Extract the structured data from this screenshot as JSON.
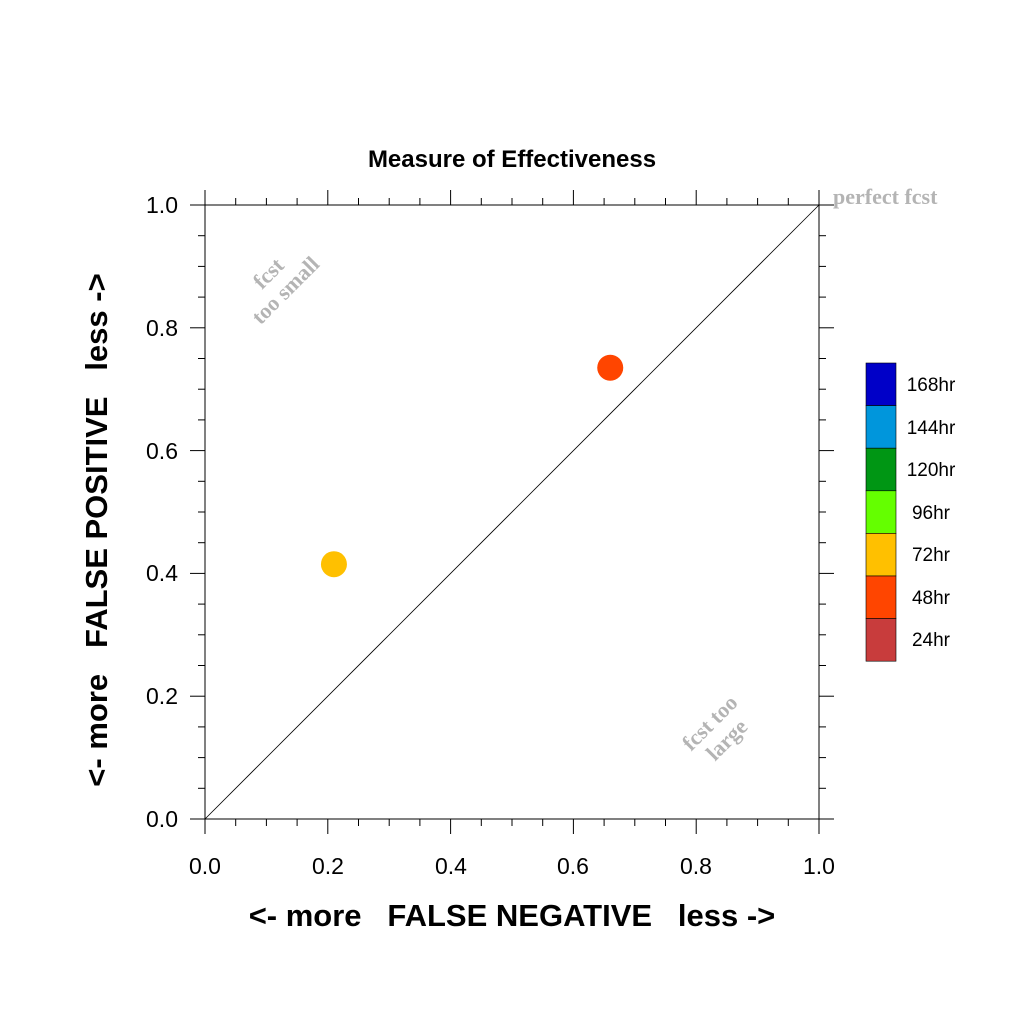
{
  "chart_data": {
    "type": "scatter",
    "title": "Measure of Effectiveness",
    "xlabel": "<- more   FALSE NEGATIVE   less ->",
    "ylabel": "<- more   FALSE POSITIVE   less ->",
    "xlim": [
      0.0,
      1.0
    ],
    "ylim": [
      0.0,
      1.0
    ],
    "x_ticks": [
      "0.0",
      "0.2",
      "0.4",
      "0.6",
      "0.8",
      "1.0"
    ],
    "y_ticks": [
      "0.0",
      "0.2",
      "0.4",
      "0.6",
      "0.8",
      "1.0"
    ],
    "grid": false,
    "diagonal_line": true,
    "annotations": {
      "top_right": "perfect fcst",
      "upper_left_1": "fcst",
      "upper_left_2": "too small",
      "lower_right_1": "fcst too",
      "lower_right_2": "large"
    },
    "points": [
      {
        "x": 0.21,
        "y": 0.415,
        "lead": "72hr",
        "color": "#ffc000"
      },
      {
        "x": 0.66,
        "y": 0.735,
        "lead": "48hr",
        "color": "#ff4500"
      }
    ],
    "legend": {
      "placement": "right",
      "items": [
        {
          "label": "168hr",
          "color": "#0000c8"
        },
        {
          "label": "144hr",
          "color": "#0096dc"
        },
        {
          "label": "120hr",
          "color": "#009614"
        },
        {
          "label": "96hr",
          "color": "#64ff00"
        },
        {
          "label": "72hr",
          "color": "#ffc000"
        },
        {
          "label": "48hr",
          "color": "#ff4500"
        },
        {
          "label": "24hr",
          "color": "#c83c3c"
        }
      ]
    }
  }
}
